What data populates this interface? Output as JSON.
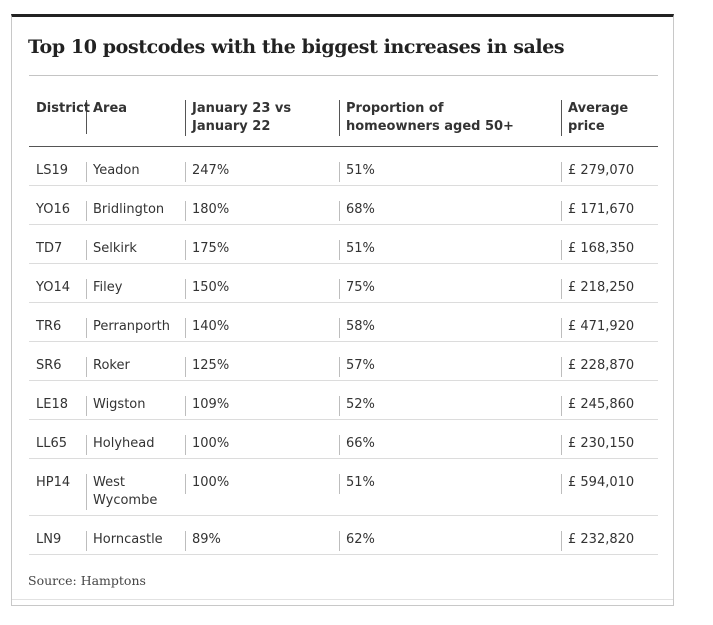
{
  "title": "Top 10 postcodes with the biggest increases in sales",
  "columns": [
    "District",
    "Area",
    "January 23 vs January 22",
    "Proportion of homeowners aged 50+",
    "Average price"
  ],
  "rows": [
    [
      "LS19",
      "Yeadon",
      "247%",
      "51%",
      "£ 279,070"
    ],
    [
      "YO16",
      "Bridlington",
      "180%",
      "68%",
      "£ 171,670"
    ],
    [
      "TD7",
      "Selkirk",
      "175%",
      "51%",
      "£ 168,350"
    ],
    [
      "YO14",
      "Filey",
      "150%",
      "75%",
      "£ 218,250"
    ],
    [
      "TR6",
      "Perranporth",
      "140%",
      "58%",
      "£ 471,920"
    ],
    [
      "SR6",
      "Roker",
      "125%",
      "57%",
      "£ 228,870"
    ],
    [
      "LE18",
      "Wigston",
      "109%",
      "52%",
      "£ 245,860"
    ],
    [
      "LL65",
      "Holyhead",
      "100%",
      "66%",
      "£ 230,150"
    ],
    [
      "HP14",
      "West Wycombe",
      "100%",
      "51%",
      "£ 594,010"
    ],
    [
      "LN9",
      "Horncastle",
      "89%",
      "62%",
      "£ 232,820"
    ]
  ],
  "source": "Source: Hamptons",
  "colors": {
    "title_rule": "#c4c4c4",
    "header_rule": "#555555",
    "row_rule": "#dcdcdc",
    "text": "#333333"
  }
}
